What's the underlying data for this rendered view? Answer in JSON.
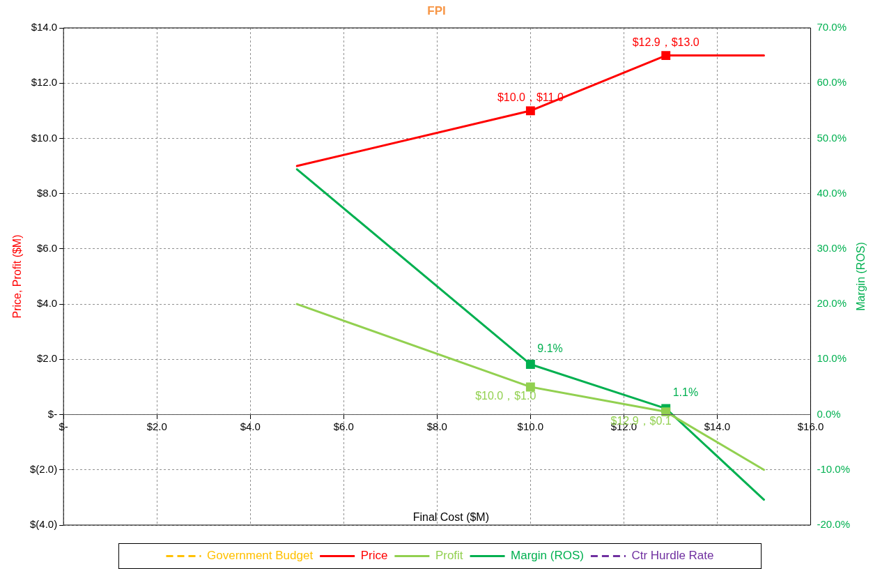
{
  "chart_data": {
    "type": "line",
    "title": "FPI",
    "xlabel": "Final Cost ($M)",
    "ylabel": "Price, Profit ($M)",
    "y2label": "Margin (ROS)",
    "xlim": [
      0,
      16
    ],
    "xticks": [
      {
        "value": 0,
        "label": "$-"
      },
      {
        "value": 2,
        "label": "$2.0"
      },
      {
        "value": 4,
        "label": "$4.0"
      },
      {
        "value": 6,
        "label": "$6.0"
      },
      {
        "value": 8,
        "label": "$8.0"
      },
      {
        "value": 10,
        "label": "$10.0"
      },
      {
        "value": 12,
        "label": "$12.0"
      },
      {
        "value": 14,
        "label": "$14.0"
      },
      {
        "value": 16,
        "label": "$16.0"
      }
    ],
    "ylim": [
      -4,
      14
    ],
    "yticks": [
      {
        "value": -4,
        "label": "$(4.0)"
      },
      {
        "value": -2,
        "label": "$(2.0)"
      },
      {
        "value": 0,
        "label": "$-"
      },
      {
        "value": 2,
        "label": "$2.0"
      },
      {
        "value": 4,
        "label": "$4.0"
      },
      {
        "value": 6,
        "label": "$6.0"
      },
      {
        "value": 8,
        "label": "$8.0"
      },
      {
        "value": 10,
        "label": "$10.0"
      },
      {
        "value": 12,
        "label": "$12.0"
      },
      {
        "value": 14,
        "label": "$14.0"
      }
    ],
    "y2lim": [
      -20,
      70
    ],
    "y2ticks": [
      {
        "value": -20,
        "label": "-20.0%"
      },
      {
        "value": -10,
        "label": "-10.0%"
      },
      {
        "value": 0,
        "label": "0.0%"
      },
      {
        "value": 10,
        "label": "10.0%"
      },
      {
        "value": 20,
        "label": "20.0%"
      },
      {
        "value": 30,
        "label": "30.0%"
      },
      {
        "value": 40,
        "label": "40.0%"
      },
      {
        "value": 50,
        "label": "50.0%"
      },
      {
        "value": 60,
        "label": "60.0%"
      },
      {
        "value": 70,
        "label": "70.0%"
      }
    ],
    "grid": true,
    "legend": "bottom",
    "series": [
      {
        "name": "Government Budget",
        "color": "#ffc000",
        "line_style": "dashed"
      },
      {
        "name": "Price",
        "color": "#ff0000",
        "marker": "square",
        "x": [
          5,
          10,
          12.9,
          15
        ],
        "values": [
          9,
          11,
          13,
          13
        ],
        "value_labels": [
          null,
          "$10.0，$11.0",
          "$12.9，$13.0",
          null
        ]
      },
      {
        "name": "Profit",
        "color": "#92d050",
        "marker": "square",
        "x": [
          5,
          10,
          12.9,
          15
        ],
        "values": [
          4,
          1,
          0.1,
          -2
        ],
        "value_labels": [
          null,
          "$10.0，$1.0",
          "$12.9，$0.1",
          null
        ]
      },
      {
        "name": "Margin (ROS)",
        "color": "#00b050",
        "marker": "square",
        "axis": "y2",
        "x": [
          5,
          10,
          12.9,
          15
        ],
        "values": [
          44.4,
          9.1,
          1.1,
          -15.4
        ],
        "value_labels": [
          null,
          "9.1%",
          "1.1%",
          null
        ]
      },
      {
        "name": "Ctr Hurdle Rate",
        "color": "#7030a0",
        "line_style": "dashed"
      }
    ]
  }
}
